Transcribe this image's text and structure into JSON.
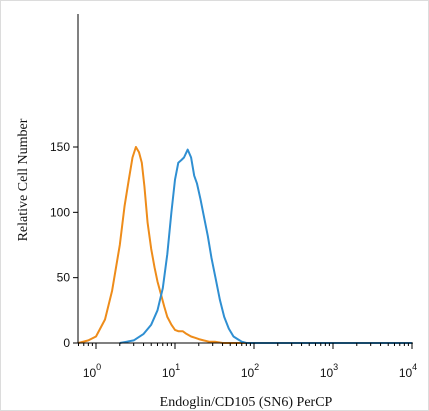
{
  "chart_data": {
    "type": "line",
    "xlabel": "Endoglin/CD105 (SN6) PerCP",
    "ylabel": "Relative Cell Number",
    "x_scale": "log",
    "xlim": [
      0.5,
      10000
    ],
    "ylim": [
      0,
      170
    ],
    "x_ticks": [
      {
        "value": 1,
        "base": "10",
        "exp": "0"
      },
      {
        "value": 10,
        "base": "10",
        "exp": "1"
      },
      {
        "value": 100,
        "base": "10",
        "exp": "2"
      },
      {
        "value": 1000,
        "base": "10",
        "exp": "3"
      },
      {
        "value": 10000,
        "base": "10",
        "exp": "4"
      }
    ],
    "y_ticks": [
      {
        "value": 0,
        "label": "0"
      },
      {
        "value": 50,
        "label": "50"
      },
      {
        "value": 100,
        "label": "100"
      },
      {
        "value": 150,
        "label": "150"
      }
    ],
    "grid": false,
    "legend": "none",
    "series": [
      {
        "color": "#ee8c1a",
        "x": [
          0.6,
          0.8,
          1.0,
          1.3,
          1.6,
          2.0,
          2.3,
          2.6,
          2.9,
          3.2,
          3.5,
          3.8,
          4.1,
          4.5,
          5.0,
          5.5,
          6.0,
          6.6,
          7.3,
          8.0,
          9.0,
          10.0,
          11.0,
          12.5,
          14.0,
          16.0,
          18.0,
          20.0,
          23.0,
          27.0,
          32.0,
          40.0,
          50.0,
          100.0,
          1000.0,
          10000.0
        ],
        "y": [
          0,
          2,
          5,
          18,
          40,
          75,
          105,
          125,
          142,
          150,
          146,
          138,
          120,
          92,
          72,
          58,
          47,
          38,
          28,
          20,
          14,
          10,
          9,
          9,
          7,
          5,
          4,
          3,
          2,
          1,
          1,
          0,
          0,
          0,
          0,
          0
        ]
      },
      {
        "color": "#2f8fd2",
        "x": [
          2.0,
          3.0,
          4.0,
          5.0,
          6.0,
          7.0,
          8.0,
          9.0,
          10.0,
          11.0,
          12.0,
          13.0,
          14.5,
          16.0,
          17.5,
          19.0,
          21.0,
          23.0,
          26.0,
          29.0,
          33.0,
          37.0,
          42.0,
          48.0,
          55.0,
          62.0,
          70.0,
          80.0,
          100.0,
          1000.0,
          10000.0
        ],
        "y": [
          0,
          2,
          7,
          14,
          25,
          42,
          68,
          100,
          125,
          138,
          140,
          142,
          148,
          142,
          128,
          122,
          110,
          98,
          82,
          65,
          48,
          33,
          20,
          11,
          5,
          3,
          1,
          0,
          0,
          0,
          0
        ]
      }
    ]
  }
}
